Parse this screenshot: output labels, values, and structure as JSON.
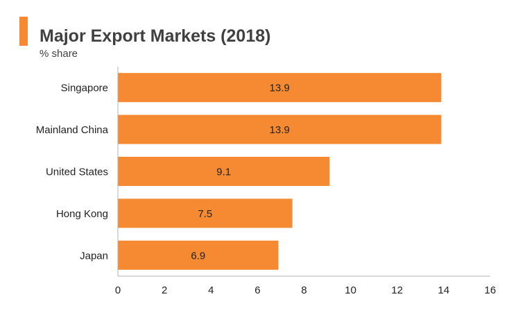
{
  "chart_data": {
    "type": "bar",
    "orientation": "horizontal",
    "title": "Major Export Markets (2018)",
    "subtitle": "% share",
    "categories": [
      "Singapore",
      "Mainland China",
      "United States",
      "Hong Kong",
      "Japan"
    ],
    "values": [
      13.9,
      13.9,
      9.1,
      7.5,
      6.9
    ],
    "value_labels": [
      "13.9",
      "13.9",
      "9.1",
      "7.5",
      "6.9"
    ],
    "xlabel": "",
    "ylabel": "",
    "xlim": [
      0,
      16
    ],
    "xticks": [
      0,
      2,
      4,
      6,
      8,
      10,
      12,
      14,
      16
    ],
    "grid": false,
    "legend": "none"
  },
  "colors": {
    "bar": "#F58A33",
    "accent": "#F58A33",
    "title": "#404040",
    "text": "#222222",
    "axis": "#b3b3b3"
  }
}
